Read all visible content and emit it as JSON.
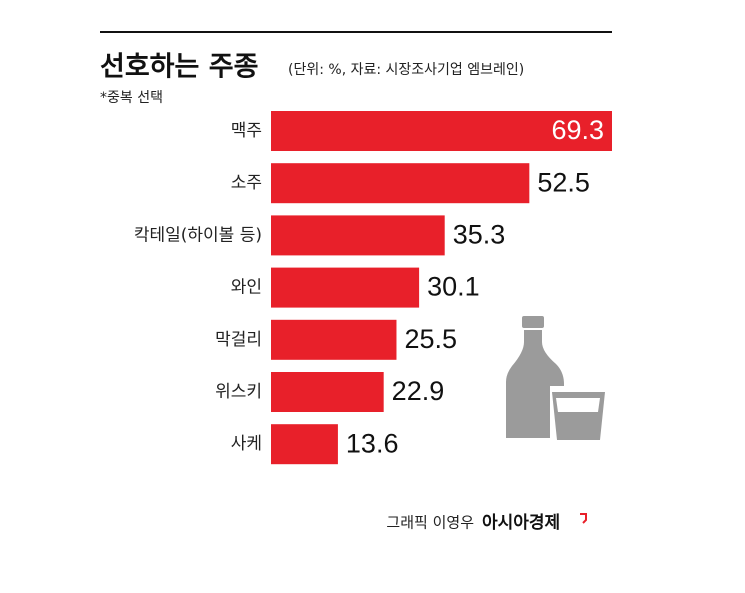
{
  "chart_data": {
    "type": "bar",
    "orientation": "horizontal",
    "title": "선호하는 주종",
    "subtitle": "(단위: %, 자료: 시장조사기업 엠브레인)",
    "note": "*중복 선택",
    "categories": [
      "맥주",
      "소주",
      "칵테일(하이볼 등)",
      "와인",
      "막걸리",
      "위스키",
      "사케"
    ],
    "values": [
      69.3,
      52.5,
      35.3,
      30.1,
      25.5,
      22.9,
      13.6
    ],
    "color": "#e8202a",
    "credit": "그래픽 이영우",
    "source_brand": "아시아경제"
  }
}
